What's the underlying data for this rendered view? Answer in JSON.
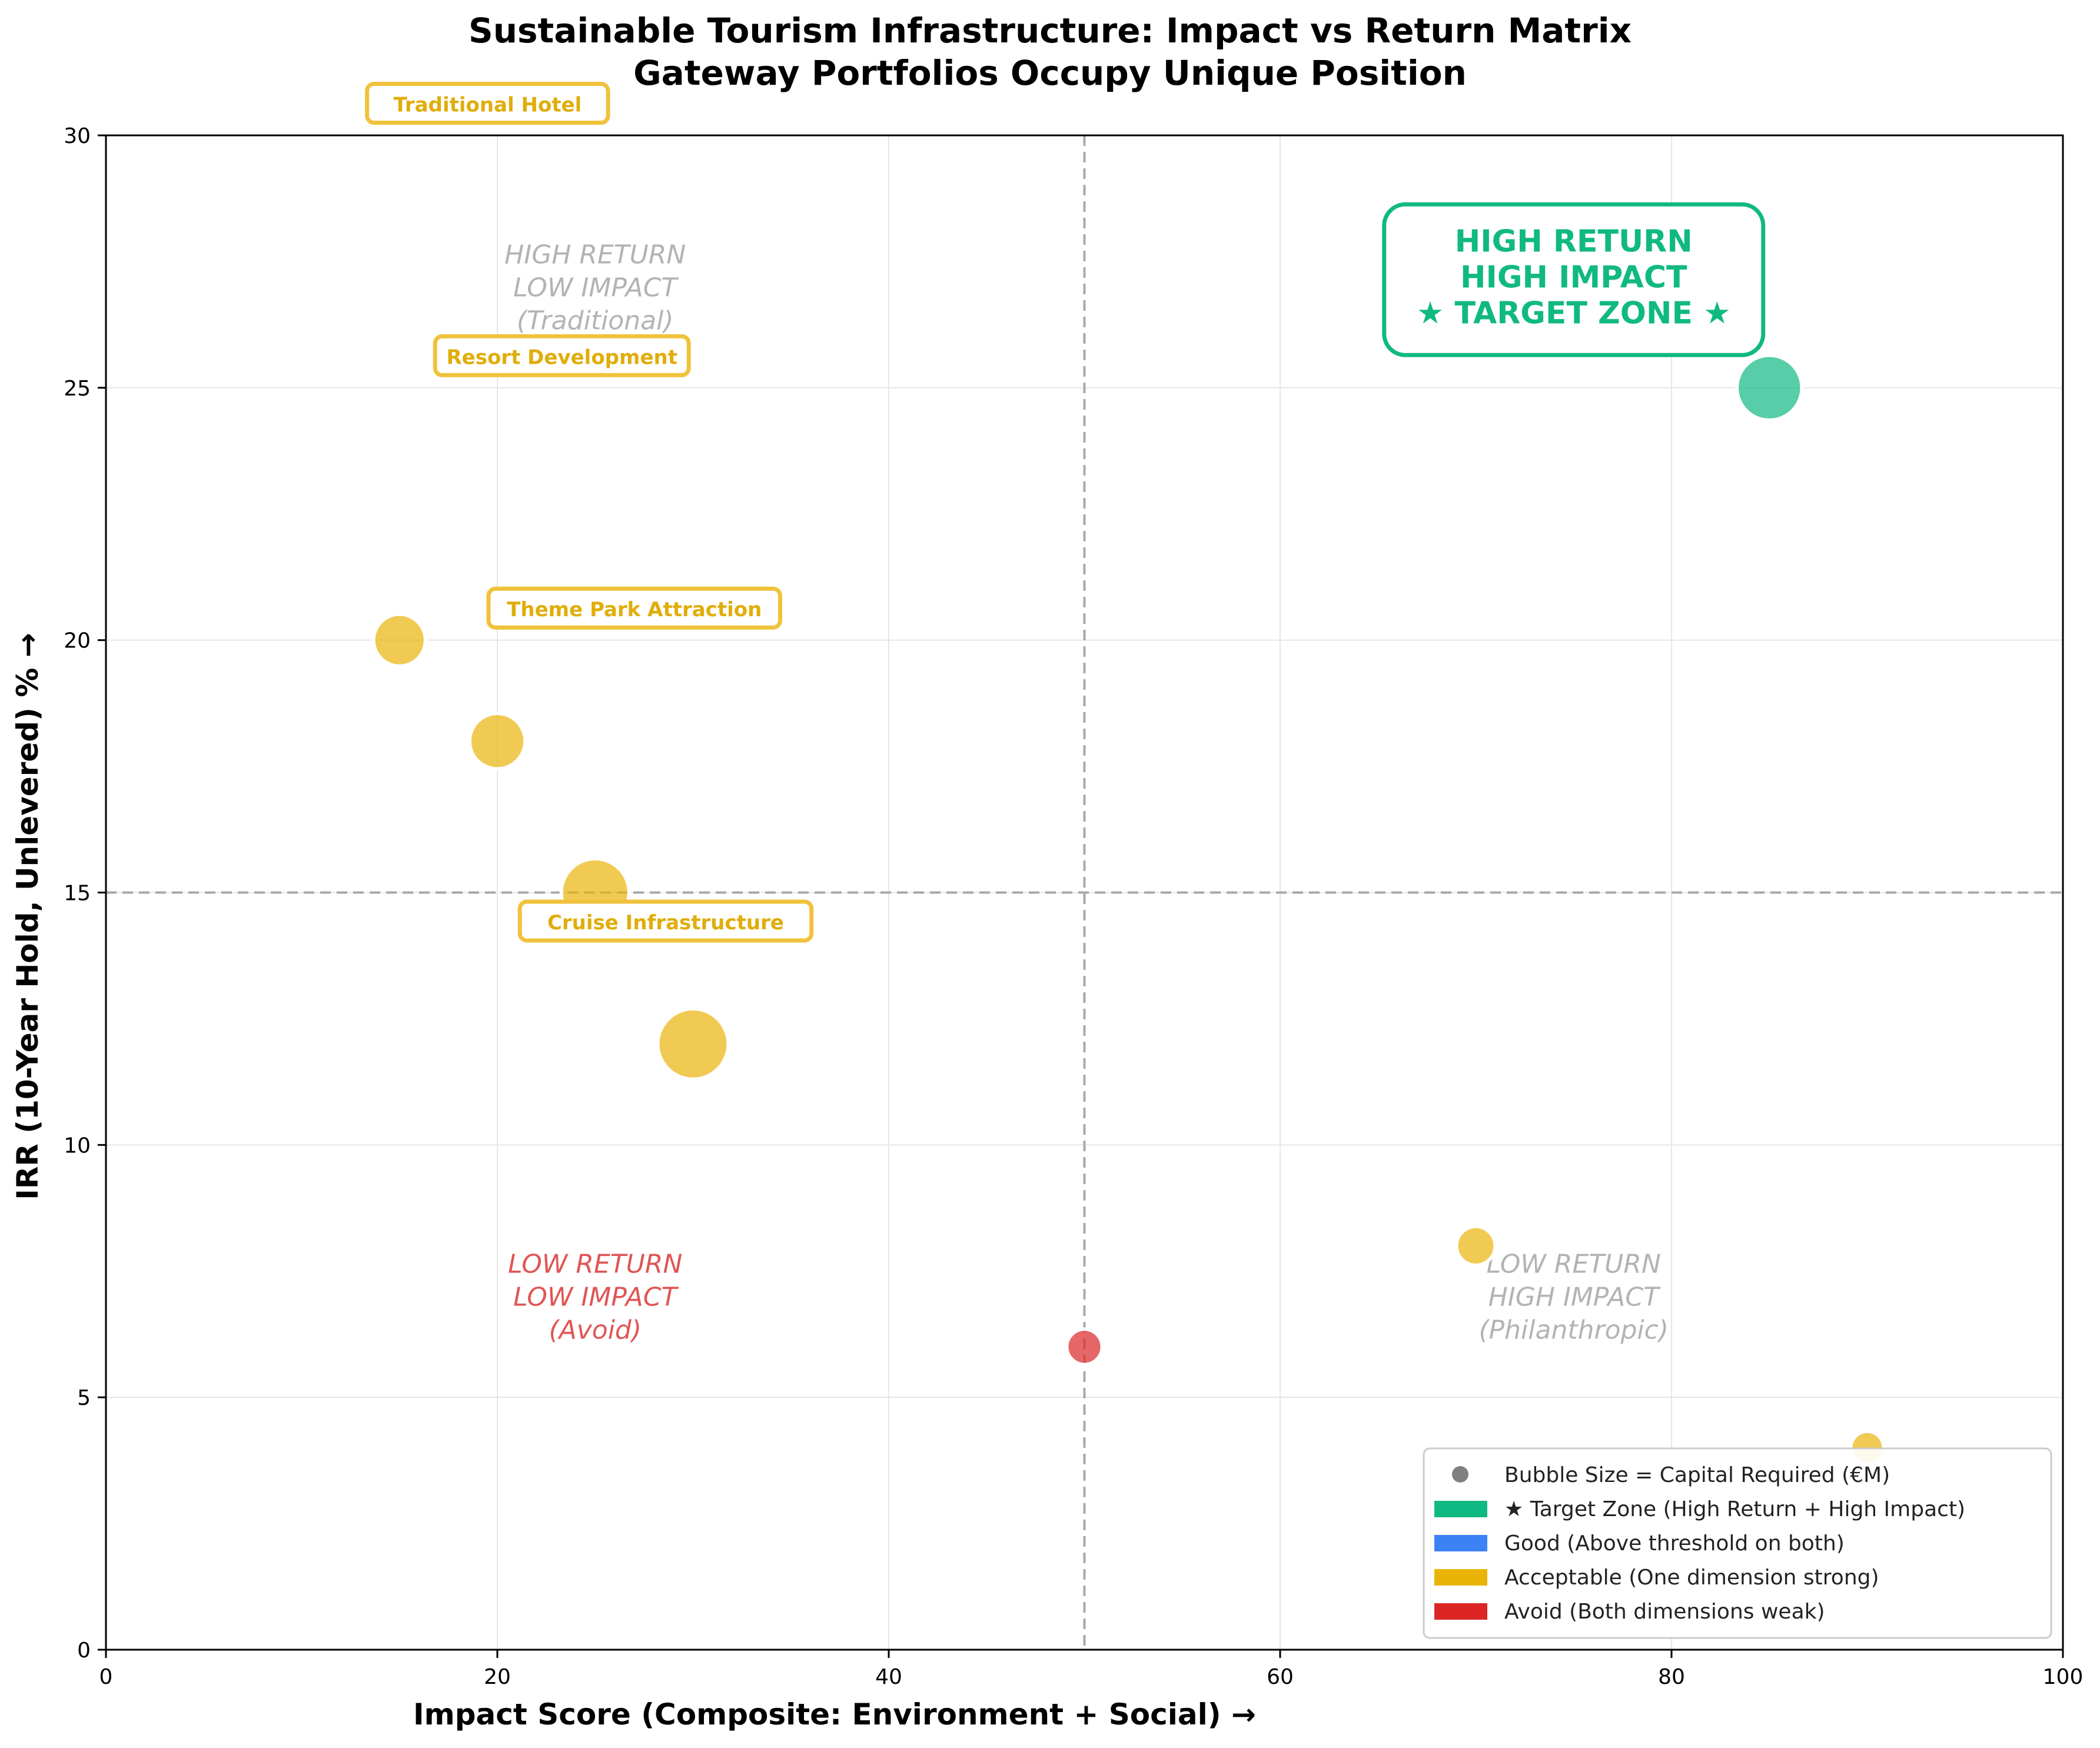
{
  "chart_data": {
    "type": "scatter",
    "title": "Sustainable Tourism Infrastructure: Impact vs Return Matrix",
    "subtitle": "Gateway Portfolios Occupy Unique Position",
    "xlabel": "Impact Score (Composite: Environment + Social) →",
    "ylabel": "IRR (10-Year Hold, Unlevered) % →",
    "xlim": [
      0,
      100
    ],
    "ylim": [
      0,
      30
    ],
    "xticks": [
      0,
      20,
      40,
      60,
      80,
      100
    ],
    "yticks": [
      0,
      5,
      10,
      15,
      20,
      25,
      30
    ],
    "grid": true,
    "thresholds": {
      "x": 50,
      "y": 15
    },
    "colors": {
      "target": "#10b981",
      "good": "#3b82f6",
      "acceptable": "#eab308",
      "avoid": "#dc2626"
    },
    "points": [
      {
        "x": 85,
        "y": 25,
        "size": 5,
        "category": "target"
      },
      {
        "x": 15,
        "y": 20,
        "size": 3,
        "category": "acceptable"
      },
      {
        "x": 20,
        "y": 18,
        "size": 3.5,
        "category": "acceptable"
      },
      {
        "x": 25,
        "y": 15,
        "size": 5.5,
        "category": "acceptable"
      },
      {
        "x": 30,
        "y": 12,
        "size": 6,
        "category": "acceptable"
      },
      {
        "x": 70,
        "y": 8,
        "size": 1.5,
        "category": "acceptable"
      },
      {
        "x": 50,
        "y": 6,
        "size": 1.2,
        "category": "avoid"
      },
      {
        "x": 90,
        "y": 4,
        "size": 1,
        "category": "acceptable"
      }
    ],
    "point_labels": [
      {
        "text": "Traditional Hotel",
        "x": 19.5,
        "y": 30.6
      },
      {
        "text": "Resort Development",
        "x": 23.3,
        "y": 25.6
      },
      {
        "text": "Theme Park Attraction",
        "x": 27,
        "y": 20.6
      },
      {
        "text": "Cruise Infrastructure",
        "x": 28.6,
        "y": 14.4
      }
    ],
    "quadrant_labels": [
      {
        "lines": [
          "HIGH RETURN",
          "LOW IMPACT",
          "(Traditional)"
        ],
        "x": 25,
        "y": 27,
        "color": "#b3b3b3"
      },
      {
        "lines": [
          "LOW RETURN",
          "LOW IMPACT",
          "(Avoid)"
        ],
        "x": 25,
        "y": 7,
        "color": "#e05555"
      },
      {
        "lines": [
          "LOW RETURN",
          "HIGH IMPACT",
          "(Philanthropic)"
        ],
        "x": 75,
        "y": 7,
        "color": "#b3b3b3"
      }
    ],
    "target_zone_label": {
      "lines": [
        "HIGH RETURN",
        "HIGH IMPACT",
        "★ TARGET ZONE ★"
      ],
      "x": 75,
      "y": 27
    },
    "legend": {
      "placement": "lower-right",
      "entries": [
        {
          "label": "Bubble Size = Capital Required (€M)",
          "marker": "dot",
          "color": "#808080"
        },
        {
          "label": "★ Target Zone (High Return + High Impact)",
          "marker": "patch",
          "color": "#10b981"
        },
        {
          "label": "Good (Above threshold on both)",
          "marker": "patch",
          "color": "#3b82f6"
        },
        {
          "label": "Acceptable (One dimension strong)",
          "marker": "patch",
          "color": "#eab308"
        },
        {
          "label": "Avoid (Both dimensions weak)",
          "marker": "patch",
          "color": "#dc2626"
        }
      ]
    }
  }
}
